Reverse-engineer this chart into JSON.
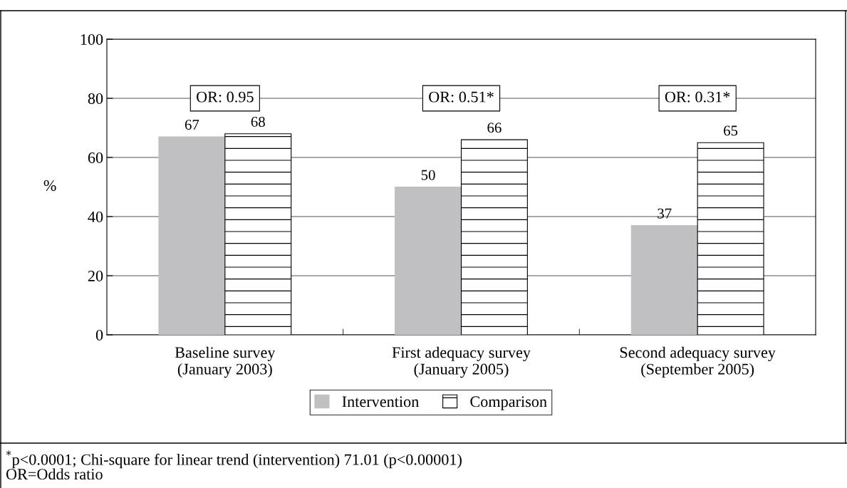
{
  "chart_data": {
    "type": "bar",
    "ylabel": "%",
    "categories": [
      "Baseline survey\n(January 2003)",
      "First adequacy survey\n(January 2005)",
      "Second adequacy survey\n(September 2005)"
    ],
    "series": [
      {
        "name": "Intervention",
        "color": "#c0c0c2",
        "values": [
          67,
          50,
          37
        ]
      },
      {
        "name": "Comparison",
        "color": "#000000",
        "values": [
          68,
          66,
          65
        ]
      }
    ],
    "data_labels": true,
    "ylim": [
      0,
      100
    ],
    "yticks": [
      0,
      20,
      40,
      60,
      80,
      100
    ],
    "grid": "y",
    "legend": "bottom",
    "annotations": [
      "OR: 0.95",
      "OR: 0.51*",
      "OR: 0.31*",
      "$^{*}$p<0.0001; Chi-square for linear trend (intervention) 71.01 (p<0.00001)\nOR=Odds ratio"
    ]
  }
}
